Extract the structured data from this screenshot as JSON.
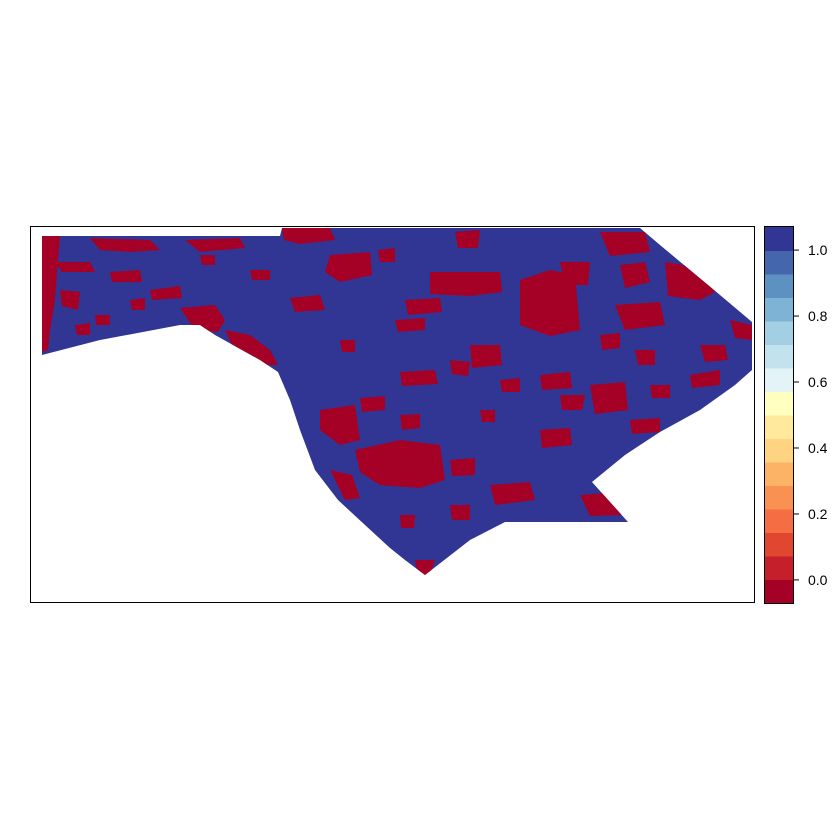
{
  "map": {
    "type": "raster",
    "background_color": "#ffffff",
    "value_range": [
      -0.07,
      1.07
    ],
    "classes": {
      "low_value": 0.0,
      "high_value": 1.0,
      "low_color": "#a50026",
      "high_color": "#313695"
    }
  },
  "legend": {
    "type": "colorbar",
    "range": [
      -0.07,
      1.07
    ],
    "ticks": [
      {
        "value": 0.0,
        "label": "0.0"
      },
      {
        "value": 0.2,
        "label": "0.2"
      },
      {
        "value": 0.4,
        "label": "0.4"
      },
      {
        "value": 0.6,
        "label": "0.6"
      },
      {
        "value": 0.8,
        "label": "0.8"
      },
      {
        "value": 1.0,
        "label": "1.0"
      }
    ],
    "colors": [
      "#a50026",
      "#c51f2b",
      "#e1462f",
      "#f46d43",
      "#f99152",
      "#fdb366",
      "#fed482",
      "#fee99d",
      "#ffffc0",
      "#e4f4f6",
      "#c2e3ed",
      "#a2cfe4",
      "#7fb3d6",
      "#5d91c2",
      "#4466ac",
      "#313695"
    ]
  }
}
